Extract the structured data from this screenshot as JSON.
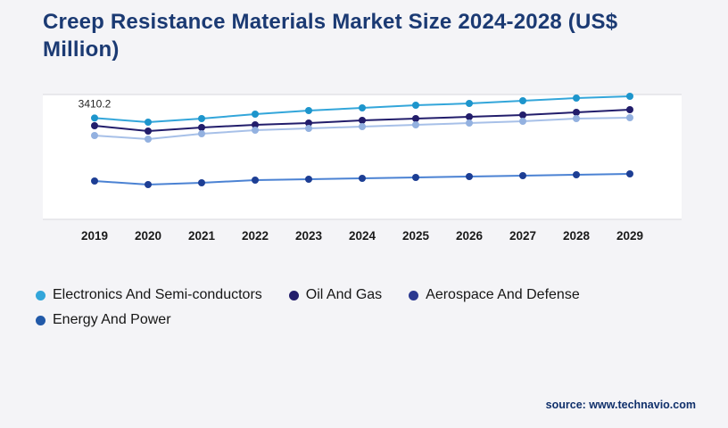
{
  "page": {
    "title": "Creep Resistance Materials Market Size 2024-2028 (US$ Million)",
    "source": "source: www.technavio.com"
  },
  "chart_data": {
    "type": "line",
    "title": "Creep Resistance Materials Market Size 2024-2028 (US$ Million)",
    "x": [
      2019,
      2020,
      2021,
      2022,
      2023,
      2024,
      2025,
      2026,
      2027,
      2028,
      2029
    ],
    "ylim": [
      0,
      4200
    ],
    "grid": "horizontal lines at top and bottom of plot band only",
    "legend_position": "bottom-left",
    "annotation": {
      "text": "3410.2",
      "series": "Electronics And Semi-conductors",
      "x": 2019
    },
    "colors": {
      "background": "#f4f4f7",
      "plot_band": "#ffffff",
      "gridline": "#d7d7dc",
      "title_navy": "#1b3a73"
    },
    "series": [
      {
        "name": "Electronics And Semi-conductors",
        "color": "#33a6da",
        "marker_color": "#1d95cc",
        "values": [
          3410.2,
          3270,
          3390,
          3540,
          3660,
          3750,
          3840,
          3900,
          3990,
          4080,
          4140
        ]
      },
      {
        "name": "Oil And Gas",
        "color": "#221d6b",
        "marker_color": "#221d6b",
        "values": [
          3150,
          2970,
          3090,
          3180,
          3240,
          3330,
          3390,
          3450,
          3510,
          3600,
          3690
        ]
      },
      {
        "name": "Aerospace And Defense",
        "color": "#a7c0e8",
        "marker_color": "#93b1e0",
        "dot_color": "#2b3990",
        "values": [
          2820,
          2700,
          2880,
          3000,
          3060,
          3120,
          3180,
          3240,
          3300,
          3390,
          3420
        ]
      },
      {
        "name": "Energy And Power",
        "color": "#4b82d3",
        "marker_color": "#1d3e94",
        "dot_color": "#2159a8",
        "values": [
          1290,
          1170,
          1230,
          1320,
          1350,
          1380,
          1410,
          1440,
          1470,
          1500,
          1530
        ]
      }
    ]
  }
}
